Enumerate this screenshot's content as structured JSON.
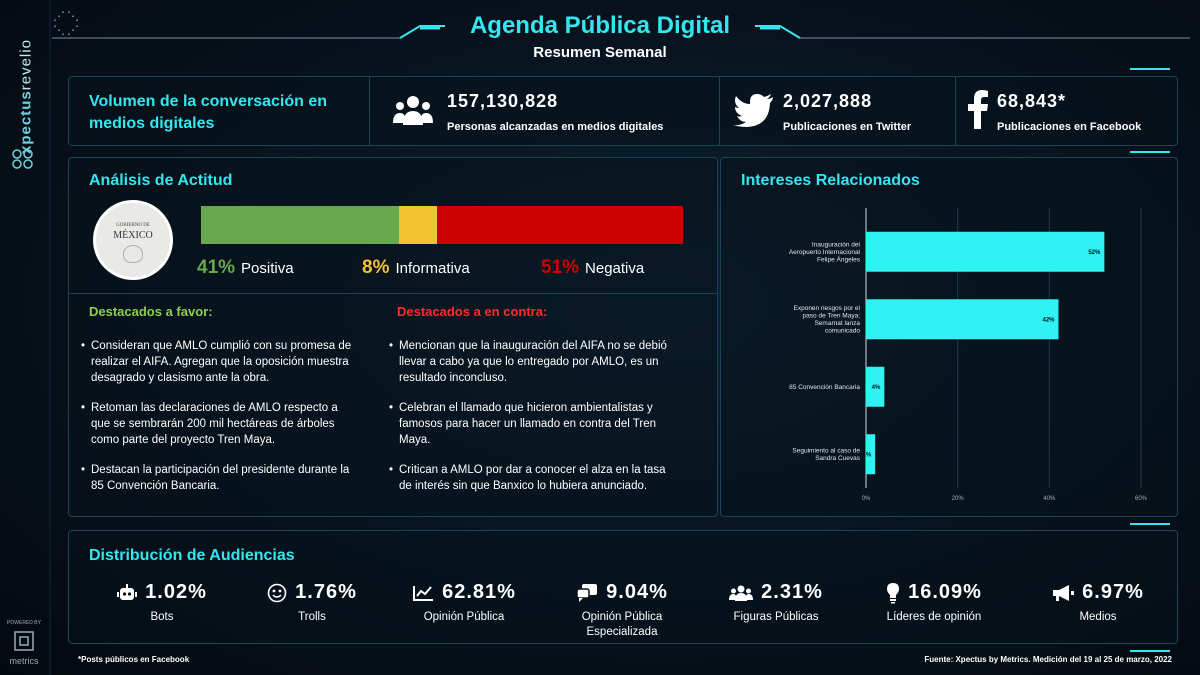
{
  "brand": {
    "vertical_bold": "xpectus",
    "vertical_light": "revelio",
    "powered_by": "POWERED BY",
    "metrics": "metrics"
  },
  "header": {
    "title": "Agenda Pública Digital",
    "subtitle": "Resumen Semanal"
  },
  "volume": {
    "title": "Volumen de la conversación en medios digitales",
    "stats": [
      {
        "icon": "people-icon",
        "value": "157,130,828",
        "label": "Personas alcanzadas en medios digitales"
      },
      {
        "icon": "twitter-icon",
        "value": "2,027,888",
        "label": "Publicaciones en Twitter"
      },
      {
        "icon": "facebook-icon",
        "value": "68,843*",
        "label": "Publicaciones en Facebook"
      }
    ]
  },
  "attitude": {
    "title": "Análisis de Actitud",
    "seal": {
      "line1": "GOBIERNO DE",
      "line2": "MÉXICO"
    },
    "segments": [
      {
        "pct": "41%",
        "label": "Positiva",
        "value": 41,
        "color": "#6aa84f"
      },
      {
        "pct": "8%",
        "label": "Informativa",
        "value": 8,
        "color": "#f1c232"
      },
      {
        "pct": "51%",
        "label": "Negativa",
        "value": 51,
        "color": "#cc0000"
      }
    ],
    "favor": {
      "title": "Destacados a favor:",
      "items": [
        "Consideran que AMLO cumplió con su promesa de realizar el AIFA. Agregan que la oposición muestra desagrado y clasismo ante la obra.",
        "Retoman las declaraciones de AMLO respecto a que se sembrarán 200 mil hectáreas de árboles como parte del proyecto Tren Maya.",
        "Destacan la participación del presidente durante la 85 Convención Bancaria."
      ]
    },
    "contra": {
      "title": "Destacados a en contra:",
      "items": [
        "Mencionan que la inauguración del AIFA no se debió llevar a cabo ya que lo entregado por AMLO, es un resultado inconcluso.",
        "Celebran el llamado que hicieron ambientalistas y famosos para hacer un llamado en contra del Tren Maya.",
        "Critican a AMLO por dar a conocer el alza en la tasa de interés sin que Banxico lo hubiera anunciado."
      ]
    }
  },
  "interests": {
    "title": "Intereses Relacionados"
  },
  "chart_data": {
    "type": "bar",
    "orientation": "horizontal",
    "title": "Intereses Relacionados",
    "categories": [
      [
        "Inauguración del",
        "Aeropuerto Internacional",
        "Felipe Ángeles"
      ],
      [
        "Exponen riesgos por el",
        "paso de Tren Maya;",
        "Semarnat lanza",
        "comunicado"
      ],
      [
        "85 Convención Bancaria"
      ],
      [
        "Seguimiento al caso de",
        "Sandra Cuevas"
      ]
    ],
    "values": [
      52,
      42,
      4,
      2
    ],
    "value_labels": [
      "52%",
      "42%",
      "4%",
      "2%"
    ],
    "xlim": [
      0,
      60
    ],
    "xticks": [
      "0%",
      "20%",
      "40%",
      "60%"
    ],
    "bar_color": "#2ff2f2",
    "grid": true
  },
  "audience": {
    "title": "Distribución de Audiencias",
    "items": [
      {
        "icon": "robot-icon",
        "value": "1.02%",
        "label": "Bots"
      },
      {
        "icon": "troll-face-icon",
        "value": "1.76%",
        "label": "Trolls"
      },
      {
        "icon": "trend-chart-icon",
        "value": "62.81%",
        "label": "Opinión Pública"
      },
      {
        "icon": "chat-bubbles-icon",
        "value": "9.04%",
        "label": "Opinión Pública Especializada"
      },
      {
        "icon": "group-icon",
        "value": "2.31%",
        "label": "Figuras Públicas"
      },
      {
        "icon": "lightbulb-icon",
        "value": "16.09%",
        "label": "Líderes de opinión"
      },
      {
        "icon": "megaphone-icon",
        "value": "6.97%",
        "label": "Medios"
      }
    ]
  },
  "footer": {
    "note": "*Posts públicos en Facebook",
    "source": "Fuente: Xpectus by Metrics. Medición del 19 al 25 de marzo, 2022"
  }
}
